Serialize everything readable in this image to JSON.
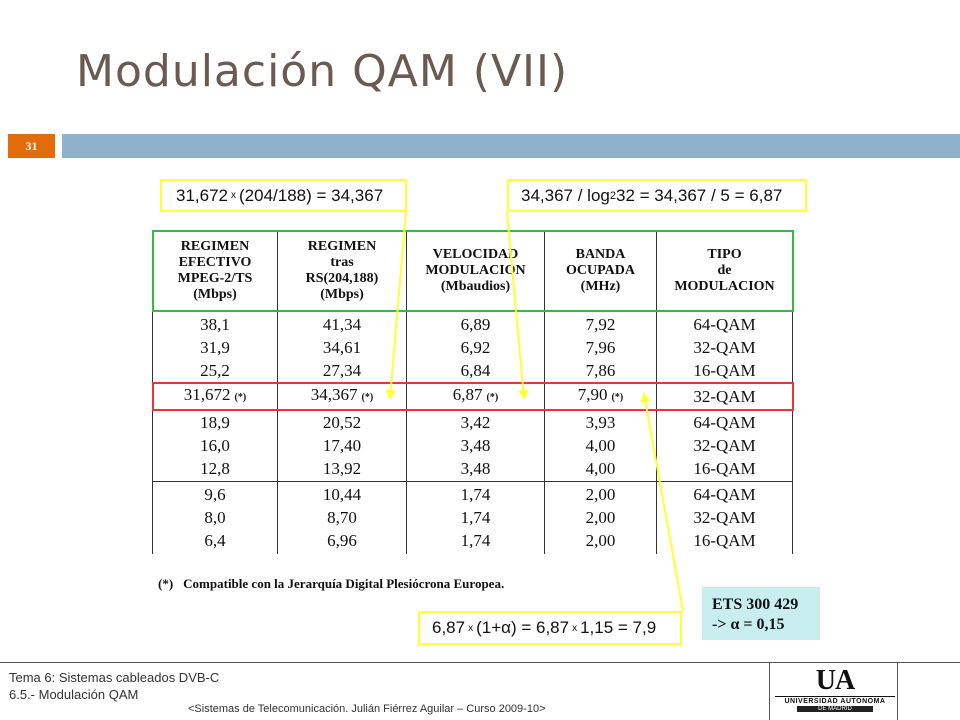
{
  "slide": {
    "title": "Modulación QAM (VII)",
    "number": "31"
  },
  "callouts": {
    "eq1": {
      "a": "31,672",
      "op": "x",
      "b": "(204/188) = 34,367"
    },
    "eq2": {
      "a": "34,367 / log",
      "sub": "2",
      "b": "32 = 34,367 / 5 = 6,87"
    },
    "eq3": {
      "a": "6,87",
      "op1": "x",
      "b": "(1+α) = 6,87",
      "op2": "x",
      "c": "1,15 = 7,9"
    }
  },
  "table": {
    "headers": [
      [
        "REGIMEN",
        "EFECTIVO",
        "MPEG-2/TS",
        "(Mbps)"
      ],
      [
        "REGIMEN",
        "tras",
        "RS(204,188)",
        "(Mbps)"
      ],
      [
        "VELOCIDAD",
        "MODULACION",
        "(Mbaudios)"
      ],
      [
        "BANDA",
        "OCUPADA",
        "(MHz)"
      ],
      [
        "TIPO",
        "de",
        "MODULACION"
      ]
    ],
    "group1": [
      [
        "38,1",
        "31,9",
        "25,2"
      ],
      [
        "41,34",
        "34,61",
        "27,34"
      ],
      [
        "6,89",
        "6,92",
        "6,84"
      ],
      [
        "7,92",
        "7,96",
        "7,86"
      ],
      [
        "64-QAM",
        "32-QAM",
        "16-QAM"
      ]
    ],
    "highlight": {
      "cells": [
        "31,672",
        "34,367",
        "6,87",
        "7,90",
        "32-QAM"
      ],
      "mark": "(*)"
    },
    "group2": [
      [
        "18,9",
        "16,0",
        "12,8"
      ],
      [
        "20,52",
        "17,40",
        "13,92"
      ],
      [
        "3,42",
        "3,48",
        "3,48"
      ],
      [
        "3,93",
        "4,00",
        "4,00"
      ],
      [
        "64-QAM",
        "32-QAM",
        "16-QAM"
      ]
    ],
    "group3": [
      [
        "9,6",
        "8,0",
        "6,4"
      ],
      [
        "10,44",
        "8,70",
        "6,96"
      ],
      [
        "1,74",
        "1,74",
        "1,74"
      ],
      [
        "2,00",
        "2,00",
        "2,00"
      ],
      [
        "64-QAM",
        "32-QAM",
        "16-QAM"
      ]
    ]
  },
  "note": {
    "mark": "(*)",
    "text": "Compatible con la Jerarquía Digital Plesiócrona Europea."
  },
  "ets": {
    "line1": "ETS 300 429",
    "line2": "->  α = 0,15"
  },
  "footer": {
    "topic_line1": "Tema 6: Sistemas cableados DVB-C",
    "topic_line2": "6.5.- Modulación QAM",
    "credit": "<Sistemas de Telecomunicación. Julián Fiérrez Aguilar – Curso 2009-10>"
  },
  "logo": {
    "mark": "UA",
    "name": "UNIVERSIDAD AUTONOMA",
    "city": "DE MADRID"
  },
  "colors": {
    "title": "#6b5a52",
    "accent_orange": "#e36c0a",
    "bar_blue": "#8fb1cc",
    "callout_yellow": "#ffff33",
    "header_green": "#33bb44",
    "highlight_red": "#ee3333",
    "ets_bg": "#c8eef0"
  }
}
